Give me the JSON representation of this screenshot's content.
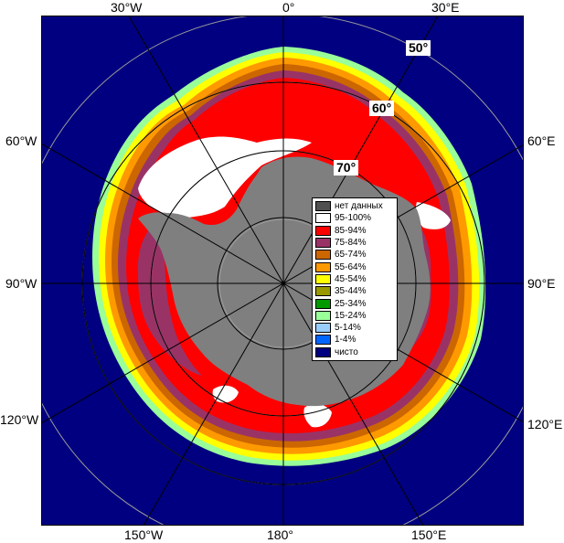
{
  "map": {
    "edge_labels": {
      "top_left": "30°W",
      "top_center": "0°",
      "top_right": "30°E",
      "left_upper": "60°W",
      "left_middle": "90°W",
      "left_lower": "120°W",
      "right_upper": "60°E",
      "right_middle": "90°E",
      "right_lower": "120°E",
      "bottom_left": "150°W",
      "bottom_center": "180°",
      "bottom_right": "150°E"
    },
    "latitude_labels": [
      "50°",
      "60°",
      "70°"
    ],
    "colors": {
      "ocean_open": "#000080",
      "land": "#7f7f7f",
      "graticule": "#9a9a9a",
      "polar_circle": "#000000"
    }
  },
  "legend": {
    "items": [
      {
        "label": "нет данных",
        "color": "#505050"
      },
      {
        "label": "95-100%",
        "color": "#ffffff"
      },
      {
        "label": "85-94%",
        "color": "#ff0000"
      },
      {
        "label": "75-84%",
        "color": "#993366"
      },
      {
        "label": "65-74%",
        "color": "#cc6600"
      },
      {
        "label": "55-64%",
        "color": "#ff9900"
      },
      {
        "label": "45-54%",
        "color": "#ffff00"
      },
      {
        "label": "35-44%",
        "color": "#999900"
      },
      {
        "label": "25-34%",
        "color": "#009900"
      },
      {
        "label": "15-24%",
        "color": "#99ff99"
      },
      {
        "label": "5-14%",
        "color": "#99ccff"
      },
      {
        "label": "1-4%",
        "color": "#0066ff"
      },
      {
        "label": "чисто",
        "color": "#000080"
      }
    ]
  }
}
